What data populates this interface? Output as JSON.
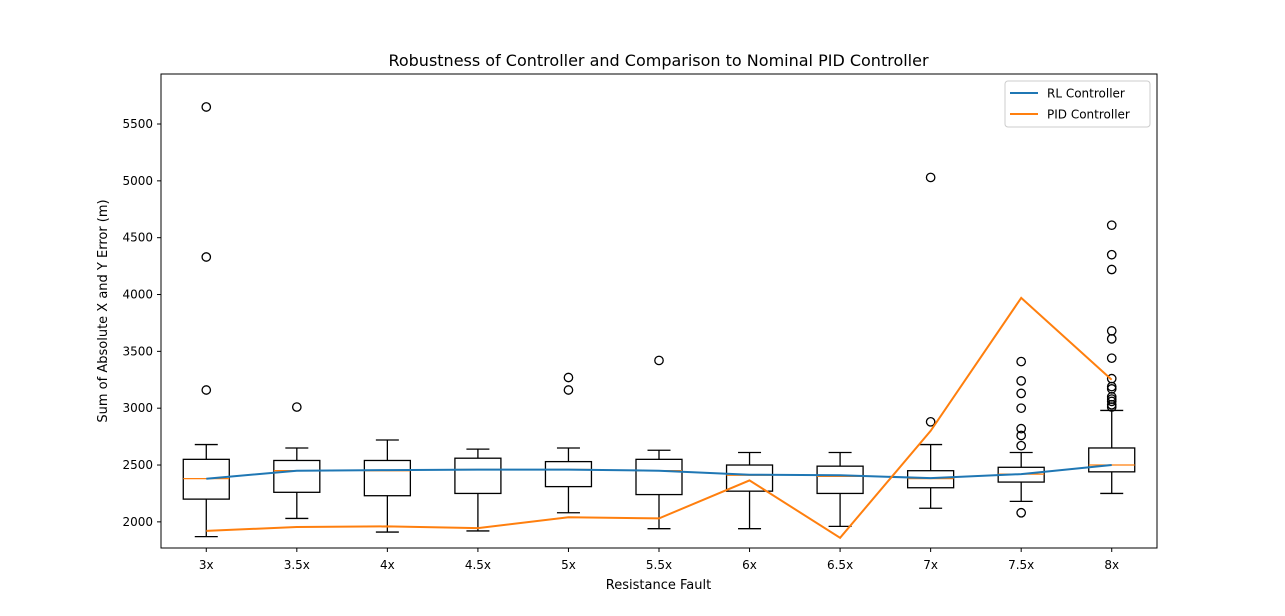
{
  "chart_data": {
    "type": "box",
    "title": "Robustness of Controller and Comparison to Nominal PID Controller",
    "xlabel": "Resistance Fault",
    "ylabel": "Sum of Absolute X and Y Error (m)",
    "categories": [
      "3x",
      "3.5x",
      "4x",
      "4.5x",
      "5x",
      "5.5x",
      "6x",
      "6.5x",
      "7x",
      "7.5x",
      "8x"
    ],
    "ylim": [
      1770,
      5940
    ],
    "yticks": [
      2000,
      2500,
      3000,
      3500,
      4000,
      4500,
      5000,
      5500
    ],
    "legend_position": "top-right",
    "grid": false,
    "boxes": [
      {
        "category": "3x",
        "whisker_low": 1870,
        "q1": 2200,
        "median": 2380,
        "q3": 2550,
        "whisker_high": 2680,
        "outliers": [
          3160,
          4330,
          5650
        ]
      },
      {
        "category": "3.5x",
        "whisker_low": 2030,
        "q1": 2260,
        "median": 2450,
        "q3": 2540,
        "whisker_high": 2650,
        "outliers": [
          3010
        ]
      },
      {
        "category": "4x",
        "whisker_low": 1910,
        "q1": 2230,
        "median": 2450,
        "q3": 2540,
        "whisker_high": 2720,
        "outliers": []
      },
      {
        "category": "4.5x",
        "whisker_low": 1920,
        "q1": 2250,
        "median": 2460,
        "q3": 2560,
        "whisker_high": 2640,
        "outliers": []
      },
      {
        "category": "5x",
        "whisker_low": 2080,
        "q1": 2310,
        "median": 2460,
        "q3": 2530,
        "whisker_high": 2650,
        "outliers": [
          3160,
          3270
        ]
      },
      {
        "category": "5.5x",
        "whisker_low": 1940,
        "q1": 2240,
        "median": 2450,
        "q3": 2550,
        "whisker_high": 2630,
        "outliers": [
          3420
        ]
      },
      {
        "category": "6x",
        "whisker_low": 1940,
        "q1": 2270,
        "median": 2410,
        "q3": 2500,
        "whisker_high": 2610,
        "outliers": []
      },
      {
        "category": "6.5x",
        "whisker_low": 1960,
        "q1": 2250,
        "median": 2400,
        "q3": 2490,
        "whisker_high": 2610,
        "outliers": []
      },
      {
        "category": "7x",
        "whisker_low": 2120,
        "q1": 2300,
        "median": 2380,
        "q3": 2450,
        "whisker_high": 2680,
        "outliers": [
          2880,
          5030
        ]
      },
      {
        "category": "7.5x",
        "whisker_low": 2180,
        "q1": 2350,
        "median": 2420,
        "q3": 2480,
        "whisker_high": 2610,
        "outliers": [
          2080,
          2670,
          2760,
          2820,
          3000,
          3130,
          3240,
          3410
        ]
      },
      {
        "category": "8x",
        "whisker_low": 2250,
        "q1": 2440,
        "median": 2500,
        "q3": 2650,
        "whisker_high": 2980,
        "outliers": [
          3010,
          3030,
          3060,
          3080,
          3100,
          3170,
          3190,
          3260,
          3440,
          3610,
          3680,
          4220,
          4350,
          4610
        ]
      }
    ],
    "series": [
      {
        "name": "RL Controller",
        "color": "#1f77b4",
        "values": [
          2380,
          2450,
          2455,
          2460,
          2460,
          2450,
          2415,
          2410,
          2385,
          2420,
          2500
        ]
      },
      {
        "name": "PID Controller",
        "color": "#ff7f0e",
        "values": [
          1920,
          1955,
          1960,
          1945,
          2040,
          2030,
          2365,
          1860,
          2800,
          3970,
          3250
        ]
      }
    ]
  }
}
